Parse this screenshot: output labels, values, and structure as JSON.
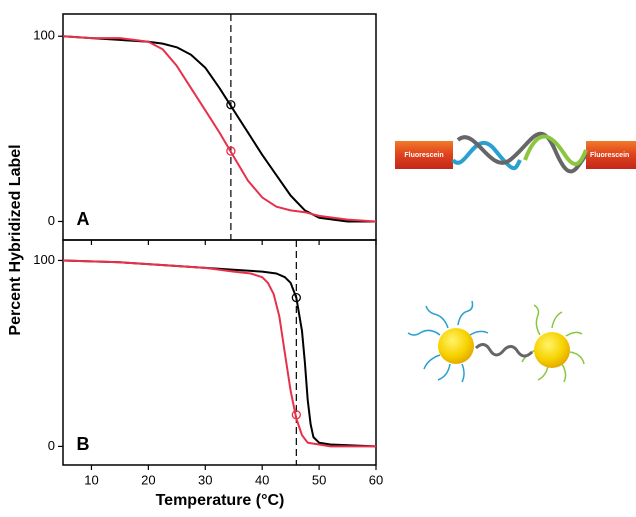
{
  "figure": {
    "xlabel": "Temperature (°C)",
    "ylabel": "Percent Hybridized Label"
  },
  "chart_data": [
    {
      "type": "line",
      "panel_label": "A",
      "xlim": [
        5,
        60
      ],
      "ylim": [
        -10,
        112
      ],
      "xticks": [
        10,
        20,
        30,
        40,
        50,
        60
      ],
      "yticks": [
        0,
        100
      ],
      "show_xtick_labels": false,
      "vline": 34.5,
      "series": [
        {
          "color": "#000000",
          "x": [
            5,
            10,
            15,
            20,
            22.5,
            25,
            27.5,
            30,
            32.5,
            35,
            37.5,
            40,
            42.5,
            45,
            47.5,
            50,
            52.5,
            55,
            60
          ],
          "values": [
            100,
            99,
            98,
            97,
            96,
            94,
            90,
            83,
            72,
            60,
            48,
            36,
            25,
            14,
            6,
            2,
            1,
            0,
            0
          ]
        },
        {
          "color": "#e8304a",
          "x": [
            5,
            10,
            15,
            17.5,
            20,
            22.5,
            25,
            27.5,
            30,
            32.5,
            35,
            37.5,
            40,
            42.5,
            45,
            47.5,
            50,
            55,
            60
          ],
          "values": [
            100,
            99,
            99,
            98,
            97,
            93,
            84,
            72,
            60,
            48,
            35,
            22,
            13,
            8,
            6,
            5,
            3,
            1,
            0
          ]
        }
      ],
      "markers": [
        {
          "color": "#000000",
          "x": 34.5,
          "y": 63
        },
        {
          "color": "#e8304a",
          "x": 34.5,
          "y": 38
        }
      ]
    },
    {
      "type": "line",
      "panel_label": "B",
      "xlim": [
        5,
        60
      ],
      "ylim": [
        -10,
        111
      ],
      "xticks": [
        10,
        20,
        30,
        40,
        50,
        60
      ],
      "yticks": [
        0,
        100
      ],
      "show_xtick_labels": true,
      "vline": 46,
      "series": [
        {
          "color": "#000000",
          "x": [
            5,
            15,
            25,
            30,
            35,
            40,
            42.5,
            44,
            45,
            46,
            47,
            47.5,
            48,
            48.5,
            49,
            50,
            52,
            60
          ],
          "values": [
            100,
            99,
            97,
            96,
            95,
            94,
            93,
            91,
            88,
            80,
            62,
            45,
            25,
            12,
            5,
            2,
            1,
            0
          ]
        },
        {
          "color": "#e8304a",
          "x": [
            5,
            15,
            25,
            30,
            35,
            38,
            40,
            41,
            42,
            43,
            44,
            45,
            46,
            47,
            48,
            50,
            52,
            60
          ],
          "values": [
            100,
            99,
            97,
            96,
            94,
            93,
            91,
            88,
            82,
            70,
            50,
            30,
            15,
            6,
            2,
            1,
            0,
            0
          ]
        }
      ],
      "markers": [
        {
          "color": "#000000",
          "x": 46,
          "y": 80
        },
        {
          "color": "#e8304a",
          "x": 46,
          "y": 17
        }
      ]
    }
  ],
  "illustration": {
    "labels": [
      "Fluorescein",
      "Fluorescein"
    ]
  }
}
